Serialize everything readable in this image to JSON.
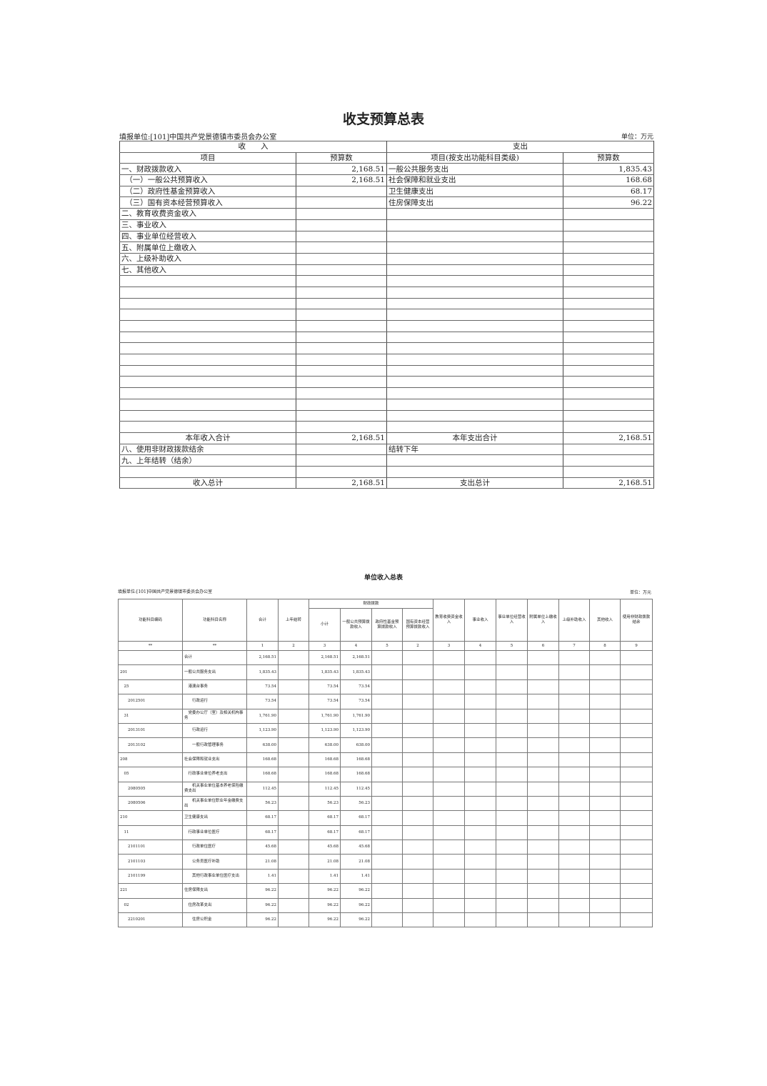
{
  "summary": {
    "title": "收支预算总表",
    "unit_label": "填报单位:[101]中国共产党景德镇市委员会办公室",
    "currency": "单位：万元",
    "income_header": "收　　入",
    "expense_header": "支出",
    "col_item": "项目",
    "col_budget": "预算数",
    "col_exp_item": "项目(按支出功能科目类级)",
    "col_exp_budget": "预算数",
    "rows": [
      {
        "inc": "一、财政拨款收入",
        "inc_v": "2,168.51",
        "exp": "一般公共服务支出",
        "exp_v": "1,835.43"
      },
      {
        "inc": "　（一）一般公共预算收入",
        "inc_v": "2,168.51",
        "exp": "社会保障和就业支出",
        "exp_v": "168.68"
      },
      {
        "inc": "　（二）政府性基金预算收入",
        "inc_v": "",
        "exp": "卫生健康支出",
        "exp_v": "68.17"
      },
      {
        "inc": "　（三）国有资本经营预算收入",
        "inc_v": "",
        "exp": "住房保障支出",
        "exp_v": "96.22"
      },
      {
        "inc": "二、教育收费资金收入",
        "inc_v": "",
        "exp": "",
        "exp_v": ""
      },
      {
        "inc": "三、事业收入",
        "inc_v": "",
        "exp": "",
        "exp_v": ""
      },
      {
        "inc": "四、事业单位经营收入",
        "inc_v": "",
        "exp": "",
        "exp_v": ""
      },
      {
        "inc": "五、附属单位上缴收入",
        "inc_v": "",
        "exp": "",
        "exp_v": ""
      },
      {
        "inc": "六、上级补助收入",
        "inc_v": "",
        "exp": "",
        "exp_v": ""
      },
      {
        "inc": "七、其他收入",
        "inc_v": "",
        "exp": "",
        "exp_v": ""
      }
    ],
    "year_income_total": "本年收入合计",
    "year_income_total_v": "2,168.51",
    "year_expense_total": "本年支出合计",
    "year_expense_total_v": "2,168.51",
    "row8": "八、使用非财政拨款结余",
    "carry_next": "结转下年",
    "row9": "九、上年结转（结余）",
    "income_grand": "收入总计",
    "income_grand_v": "2,168.51",
    "expense_grand": "支出总计",
    "expense_grand_v": "2,168.51"
  },
  "income": {
    "title": "单位收入总表",
    "unit_label": "填报单位:[101]中国共产党景德镇市委员会办公室",
    "currency": "单位：万元",
    "headers": {
      "code": "功能科目编码",
      "name": "功能科目名称",
      "total": "合计",
      "carry": "上年结转",
      "fiscal": "财政拨款",
      "subtotal": "小计",
      "general": "一般公共预算拨款收入",
      "fund": "政府性基金预算拨款收入",
      "state": "国有资本经营预算拨款收入",
      "edu": "教育收费资金收入",
      "business": "事业收入",
      "operating": "事业单位经营收入",
      "affiliated": "附属单位上缴收入",
      "superior": "上级补助收入",
      "other": "其他收入",
      "surplus": "使用非财政拨款结余"
    },
    "index_row": [
      "**",
      "**",
      "1",
      "2",
      "3",
      "4",
      "5",
      "2",
      "3",
      "4",
      "5",
      "6",
      "7",
      "8",
      "9"
    ],
    "rows": [
      {
        "code": "",
        "name": "合计",
        "total": "2,168.51",
        "sub": "2,168.51",
        "gen": "2,168.51"
      },
      {
        "code": "201",
        "name": "一般公共服务支出",
        "total": "1,835.43",
        "sub": "1,835.43",
        "gen": "1,835.43"
      },
      {
        "code": "　25",
        "name": "　港澳台事务",
        "total": "73.54",
        "sub": "73.54",
        "gen": "73.54"
      },
      {
        "code": "　　2012501",
        "name": "　　行政运行",
        "total": "73.54",
        "sub": "73.54",
        "gen": "73.54"
      },
      {
        "code": "　31",
        "name": "　党委办公厅（室）及相关机构事务",
        "total": "1,761.90",
        "sub": "1,761.90",
        "gen": "1,761.90"
      },
      {
        "code": "　　2013101",
        "name": "　　行政运行",
        "total": "1,123.90",
        "sub": "1,123.90",
        "gen": "1,123.90"
      },
      {
        "code": "　　2013102",
        "name": "　　一般行政管理事务",
        "total": "638.00",
        "sub": "638.00",
        "gen": "638.00"
      },
      {
        "code": "208",
        "name": "社会保障和就业支出",
        "total": "168.68",
        "sub": "168.68",
        "gen": "168.68"
      },
      {
        "code": "　05",
        "name": "　行政事业单位养老支出",
        "total": "168.68",
        "sub": "168.68",
        "gen": "168.68"
      },
      {
        "code": "　　2080505",
        "name": "　　机关事业单位基本养老保险缴费支出",
        "total": "112.45",
        "sub": "112.45",
        "gen": "112.45"
      },
      {
        "code": "　　2080506",
        "name": "　　机关事业单位职业年金缴费支出",
        "total": "56.23",
        "sub": "56.23",
        "gen": "56.23"
      },
      {
        "code": "210",
        "name": "卫生健康支出",
        "total": "68.17",
        "sub": "68.17",
        "gen": "68.17"
      },
      {
        "code": "　11",
        "name": "　行政事业单位医疗",
        "total": "68.17",
        "sub": "68.17",
        "gen": "68.17"
      },
      {
        "code": "　　2101101",
        "name": "　　行政单位医疗",
        "total": "45.68",
        "sub": "45.68",
        "gen": "45.68"
      },
      {
        "code": "　　2101103",
        "name": "　　公务员医疗补助",
        "total": "21.08",
        "sub": "21.08",
        "gen": "21.08"
      },
      {
        "code": "　　2101199",
        "name": "　　其他行政事业单位医疗支出",
        "total": "1.41",
        "sub": "1.41",
        "gen": "1.41"
      },
      {
        "code": "221",
        "name": "住房保障支出",
        "total": "96.22",
        "sub": "96.22",
        "gen": "96.22"
      },
      {
        "code": "　02",
        "name": "　住房改革支出",
        "total": "96.22",
        "sub": "96.22",
        "gen": "96.22"
      },
      {
        "code": "　　2210201",
        "name": "　　住房公积金",
        "total": "96.22",
        "sub": "96.22",
        "gen": "96.22"
      }
    ]
  }
}
